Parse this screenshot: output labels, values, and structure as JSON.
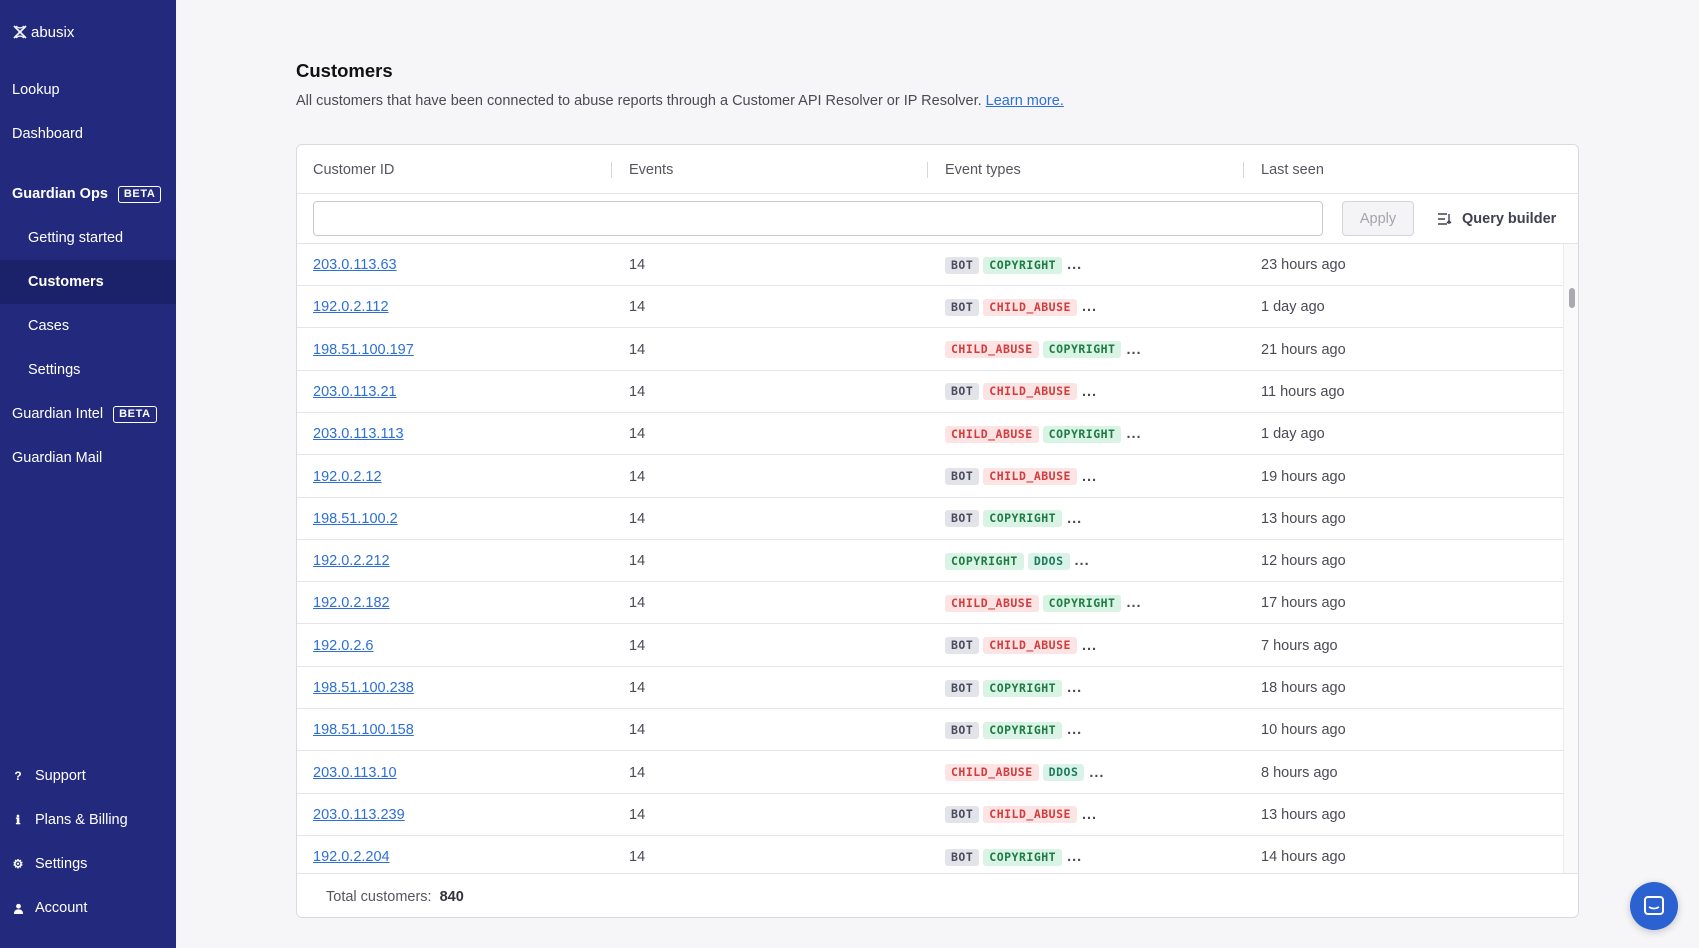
{
  "brand": {
    "name": "abusix"
  },
  "sidebar": {
    "top_items": [
      {
        "label": "Lookup"
      },
      {
        "label": "Dashboard"
      }
    ],
    "guardian_ops": {
      "label": "Guardian Ops",
      "badge": "BETA"
    },
    "ops_items": [
      {
        "label": "Getting started"
      },
      {
        "label": "Customers"
      },
      {
        "label": "Cases"
      },
      {
        "label": "Settings"
      }
    ],
    "guardian_intel": {
      "label": "Guardian Intel",
      "badge": "BETA"
    },
    "guardian_mail": {
      "label": "Guardian Mail"
    },
    "bottom_items": [
      {
        "label": "Support",
        "icon": "question-icon"
      },
      {
        "label": "Plans & Billing",
        "icon": "info-icon"
      },
      {
        "label": "Settings",
        "icon": "gear-icon"
      },
      {
        "label": "Account",
        "icon": "user-icon"
      }
    ]
  },
  "page": {
    "title": "Customers",
    "description": "All customers that have been connected to abuse reports through a Customer API Resolver or IP Resolver.",
    "learn_more": "Learn more."
  },
  "table": {
    "columns": [
      "Customer ID",
      "Events",
      "Event types",
      "Last seen"
    ],
    "filter": {
      "value": "",
      "placeholder": ""
    },
    "apply_label": "Apply",
    "query_builder_label": "Query builder",
    "rows": [
      {
        "id": "203.0.113.63",
        "events": "14",
        "tags": [
          "BOT",
          "COPYRIGHT"
        ],
        "last_seen": "23 hours ago"
      },
      {
        "id": "192.0.2.112",
        "events": "14",
        "tags": [
          "BOT",
          "CHILD_ABUSE"
        ],
        "last_seen": "1 day ago"
      },
      {
        "id": "198.51.100.197",
        "events": "14",
        "tags": [
          "CHILD_ABUSE",
          "COPYRIGHT"
        ],
        "last_seen": "21 hours ago"
      },
      {
        "id": "203.0.113.21",
        "events": "14",
        "tags": [
          "BOT",
          "CHILD_ABUSE"
        ],
        "last_seen": "11 hours ago"
      },
      {
        "id": "203.0.113.113",
        "events": "14",
        "tags": [
          "CHILD_ABUSE",
          "COPYRIGHT"
        ],
        "last_seen": "1 day ago"
      },
      {
        "id": "192.0.2.12",
        "events": "14",
        "tags": [
          "BOT",
          "CHILD_ABUSE"
        ],
        "last_seen": "19 hours ago"
      },
      {
        "id": "198.51.100.2",
        "events": "14",
        "tags": [
          "BOT",
          "COPYRIGHT"
        ],
        "last_seen": "13 hours ago"
      },
      {
        "id": "192.0.2.212",
        "events": "14",
        "tags": [
          "COPYRIGHT",
          "DDOS"
        ],
        "last_seen": "12 hours ago"
      },
      {
        "id": "192.0.2.182",
        "events": "14",
        "tags": [
          "CHILD_ABUSE",
          "COPYRIGHT"
        ],
        "last_seen": "17 hours ago"
      },
      {
        "id": "192.0.2.6",
        "events": "14",
        "tags": [
          "BOT",
          "CHILD_ABUSE"
        ],
        "last_seen": "7 hours ago"
      },
      {
        "id": "198.51.100.238",
        "events": "14",
        "tags": [
          "BOT",
          "COPYRIGHT"
        ],
        "last_seen": "18 hours ago"
      },
      {
        "id": "198.51.100.158",
        "events": "14",
        "tags": [
          "BOT",
          "COPYRIGHT"
        ],
        "last_seen": "10 hours ago"
      },
      {
        "id": "203.0.113.10",
        "events": "14",
        "tags": [
          "CHILD_ABUSE",
          "DDOS"
        ],
        "last_seen": "8 hours ago"
      },
      {
        "id": "203.0.113.239",
        "events": "14",
        "tags": [
          "BOT",
          "CHILD_ABUSE"
        ],
        "last_seen": "13 hours ago"
      },
      {
        "id": "192.0.2.204",
        "events": "14",
        "tags": [
          "BOT",
          "COPYRIGHT"
        ],
        "last_seen": "14 hours ago"
      }
    ],
    "more_indicator": "...",
    "footer": {
      "label": "Total customers:",
      "count": "840"
    }
  },
  "colors": {
    "sidebar_bg": "#232a7d",
    "sidebar_active": "#1c2269",
    "link": "#2d6fd6",
    "chat_button": "#2b61d1"
  }
}
